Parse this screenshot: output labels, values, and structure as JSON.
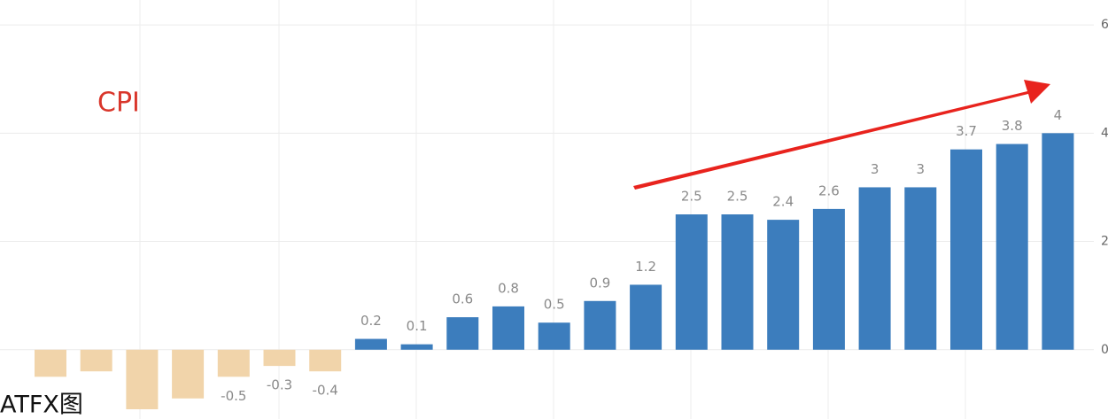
{
  "chart_data": {
    "type": "bar",
    "title": "CPI",
    "watermark": "ATFX图",
    "values": [
      -0.5,
      -0.4,
      -1.1,
      -0.9,
      -0.5,
      -0.3,
      -0.4,
      0.2,
      0.1,
      0.6,
      0.8,
      0.5,
      0.9,
      1.2,
      2.5,
      2.5,
      2.4,
      2.6,
      3,
      3,
      3.7,
      3.8,
      4
    ],
    "value_labels": [
      null,
      null,
      null,
      null,
      "-0.5",
      "-0.3",
      "-0.4",
      "0.2",
      "0.1",
      "0.6",
      "0.8",
      "0.5",
      "0.9",
      "1.2",
      "2.5",
      "2.5",
      "2.4",
      "2.6",
      "3",
      "3",
      "3.7",
      "3.8",
      "4"
    ],
    "positive_color": "#3c7dbd",
    "negative_color": "#f1d4aa",
    "ylim": [
      -1.28,
      6.46
    ],
    "yticks": [
      0,
      2,
      4,
      6
    ],
    "grid": true
  }
}
